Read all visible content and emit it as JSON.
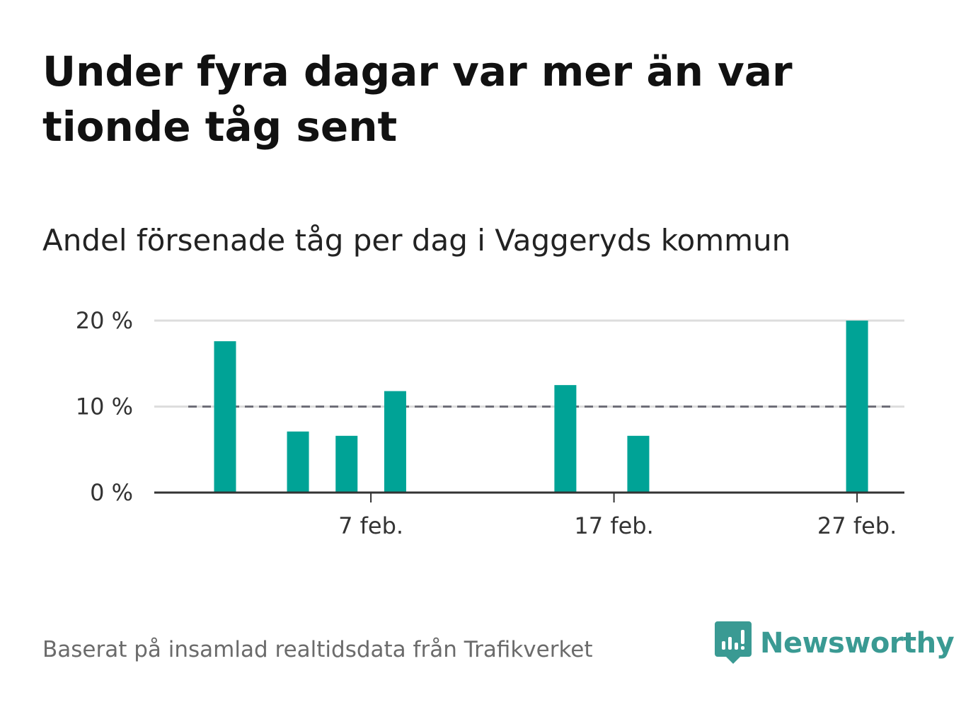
{
  "title": "Under fyra dagar var mer än var tionde tåg sent",
  "subtitle": "Andel försenade tåg per dag i Vaggeryds kommun",
  "source": "Baserat på insamlad realtidsdata från Trafikverket",
  "brand": {
    "name": "Newsworthy",
    "icon": "newsworthy-logo-icon",
    "color": "#3a9a93"
  },
  "chart_data": {
    "type": "bar",
    "x_unit": "day in February",
    "x_range": [
      1,
      28
    ],
    "bars": [
      {
        "day": 1,
        "value": 17.6
      },
      {
        "day": 4,
        "value": 7.1
      },
      {
        "day": 6,
        "value": 6.6
      },
      {
        "day": 8,
        "value": 11.8
      },
      {
        "day": 15,
        "value": 12.5
      },
      {
        "day": 18,
        "value": 6.6
      },
      {
        "day": 27,
        "value": 20.0
      }
    ],
    "ylim": [
      0,
      20
    ],
    "y_ticks": [
      {
        "value": 0,
        "label": "0 %"
      },
      {
        "value": 10,
        "label": "10 %"
      },
      {
        "value": 20,
        "label": "20 %"
      }
    ],
    "x_ticks": [
      {
        "day": 7,
        "label": "7 feb."
      },
      {
        "day": 17,
        "label": "17 feb."
      },
      {
        "day": 27,
        "label": "27 feb."
      }
    ],
    "reference_line": {
      "value": 10,
      "style": "dashed"
    },
    "grid": true,
    "bar_color": "#00a396",
    "reference_color": "#6e6e78"
  }
}
